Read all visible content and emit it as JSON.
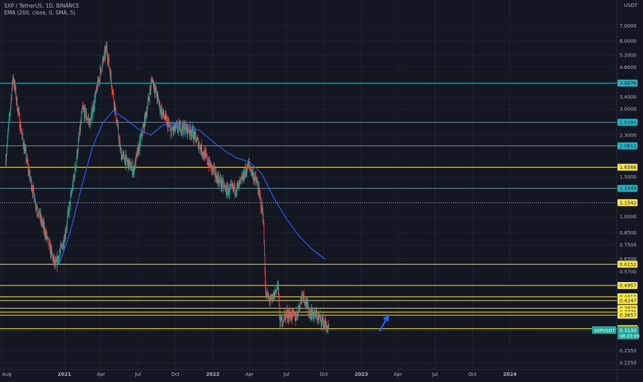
{
  "header": {
    "symbol_line": "SXP / TetherUS, 1D, BINANCE",
    "indicator_line": "EMA (200, close, 0, SMA, 5)"
  },
  "currency_label": "USDT",
  "colors": {
    "background": "#131722",
    "up_candle": "#26a69a",
    "down_candle": "#ef5350",
    "ema": "#2962ff",
    "level_cyan": "#22b5c5",
    "level_yellow": "#ffeb3b",
    "text": "#b2b5be",
    "arrow": "#2962ff"
  },
  "chart_data": {
    "type": "candlestick",
    "title": "SXP / TetherUS, 1D, BINANCE",
    "scale": "log",
    "ylim": [
      0.21,
      9.0
    ],
    "y_ticks": [
      7.0,
      6.0,
      5.2,
      4.6,
      3.4,
      3.0,
      2.3,
      1.5,
      1.0,
      0.85,
      0.75,
      0.65,
      0.57,
      0.255,
      0.225
    ],
    "x_ticks": [
      "Aug",
      "2021",
      "Apr",
      "Jul",
      "Oct",
      "2022",
      "Apr",
      "Jul",
      "Oct",
      "2023",
      "Apr",
      "Jul",
      "Oct",
      "2024"
    ],
    "price_path": [
      {
        "t": "2020-08-10",
        "p": 1.8
      },
      {
        "t": "2020-08-28",
        "p": 4.2
      },
      {
        "t": "2020-09-15",
        "p": 2.5
      },
      {
        "t": "2020-10-05",
        "p": 1.6
      },
      {
        "t": "2020-10-25",
        "p": 1.1
      },
      {
        "t": "2020-11-15",
        "p": 0.85
      },
      {
        "t": "2020-12-10",
        "p": 0.6
      },
      {
        "t": "2021-01-01",
        "p": 0.8
      },
      {
        "t": "2021-01-25",
        "p": 1.5
      },
      {
        "t": "2021-02-15",
        "p": 3.0
      },
      {
        "t": "2021-03-05",
        "p": 2.6
      },
      {
        "t": "2021-04-01",
        "p": 4.5
      },
      {
        "t": "2021-04-15",
        "p": 5.6
      },
      {
        "t": "2021-04-30",
        "p": 3.6
      },
      {
        "t": "2021-05-20",
        "p": 1.9
      },
      {
        "t": "2021-06-20",
        "p": 1.6
      },
      {
        "t": "2021-07-15",
        "p": 2.5
      },
      {
        "t": "2021-08-05",
        "p": 4.1
      },
      {
        "t": "2021-08-25",
        "p": 3.0
      },
      {
        "t": "2021-09-20",
        "p": 2.4
      },
      {
        "t": "2021-10-15",
        "p": 2.5
      },
      {
        "t": "2021-11-10",
        "p": 2.4
      },
      {
        "t": "2021-12-10",
        "p": 1.9
      },
      {
        "t": "2022-01-10",
        "p": 1.5
      },
      {
        "t": "2022-02-05",
        "p": 1.3
      },
      {
        "t": "2022-03-05",
        "p": 1.35
      },
      {
        "t": "2022-03-30",
        "p": 1.7
      },
      {
        "t": "2022-04-20",
        "p": 1.4
      },
      {
        "t": "2022-05-05",
        "p": 1.0
      },
      {
        "t": "2022-05-11",
        "p": 0.45
      },
      {
        "t": "2022-05-25",
        "p": 0.42
      },
      {
        "t": "2022-06-10",
        "p": 0.5
      },
      {
        "t": "2022-06-15",
        "p": 0.34
      },
      {
        "t": "2022-07-01",
        "p": 0.37
      },
      {
        "t": "2022-07-25",
        "p": 0.36
      },
      {
        "t": "2022-08-10",
        "p": 0.46
      },
      {
        "t": "2022-08-25",
        "p": 0.38
      },
      {
        "t": "2022-09-15",
        "p": 0.36
      },
      {
        "t": "2022-10-01",
        "p": 0.34
      },
      {
        "t": "2022-10-13",
        "p": 0.3133
      }
    ],
    "ema_200": [
      {
        "t": "2020-12-20",
        "p": 0.62
      },
      {
        "t": "2021-01-15",
        "p": 0.85
      },
      {
        "t": "2021-02-10",
        "p": 1.3
      },
      {
        "t": "2021-03-10",
        "p": 2.0
      },
      {
        "t": "2021-04-05",
        "p": 2.6
      },
      {
        "t": "2021-05-01",
        "p": 2.95
      },
      {
        "t": "2021-06-01",
        "p": 2.7
      },
      {
        "t": "2021-07-01",
        "p": 2.45
      },
      {
        "t": "2021-08-01",
        "p": 2.3
      },
      {
        "t": "2021-09-01",
        "p": 2.55
      },
      {
        "t": "2021-10-01",
        "p": 2.6
      },
      {
        "t": "2021-11-01",
        "p": 2.52
      },
      {
        "t": "2021-12-01",
        "p": 2.4
      },
      {
        "t": "2022-01-01",
        "p": 2.15
      },
      {
        "t": "2022-02-01",
        "p": 1.95
      },
      {
        "t": "2022-03-01",
        "p": 1.82
      },
      {
        "t": "2022-04-01",
        "p": 1.75
      },
      {
        "t": "2022-05-01",
        "p": 1.55
      },
      {
        "t": "2022-06-01",
        "p": 1.2
      },
      {
        "t": "2022-07-01",
        "p": 0.98
      },
      {
        "t": "2022-08-01",
        "p": 0.82
      },
      {
        "t": "2022-09-01",
        "p": 0.72
      },
      {
        "t": "2022-10-05",
        "p": 0.645
      }
    ],
    "horizontal_levels": [
      {
        "price": "3.9076",
        "color": "cyan"
      },
      {
        "price": "2.6193",
        "color": "cyan"
      },
      {
        "price": "2.0611",
        "color": "cyan"
      },
      {
        "price": "1.6566",
        "color": "yellow"
      },
      {
        "price": "1.3343",
        "color": "cyan"
      },
      {
        "price": "1.1542",
        "color": "dotted"
      },
      {
        "price": "0.6152",
        "color": "yellow"
      },
      {
        "price": "0.4957",
        "color": "yellow"
      },
      {
        "price": "0.4417",
        "color": "yellow"
      },
      {
        "price": "0.4247",
        "color": "yellow"
      },
      {
        "price": "0.3925",
        "color": "yellow"
      },
      {
        "price": "0.3776",
        "color": "yellow"
      },
      {
        "price": "0.3657",
        "color": "yellow"
      },
      {
        "price": "0.3189",
        "color": "yellow"
      }
    ],
    "current_price": {
      "symbol": "SXPUSDT",
      "price": "0.3133",
      "countdown": "08:20:09"
    },
    "projection_arrow": {
      "from": {
        "t": "2023-02-15",
        "p": 0.31
      },
      "to": {
        "t": "2023-03-10",
        "p": 0.37
      }
    }
  }
}
